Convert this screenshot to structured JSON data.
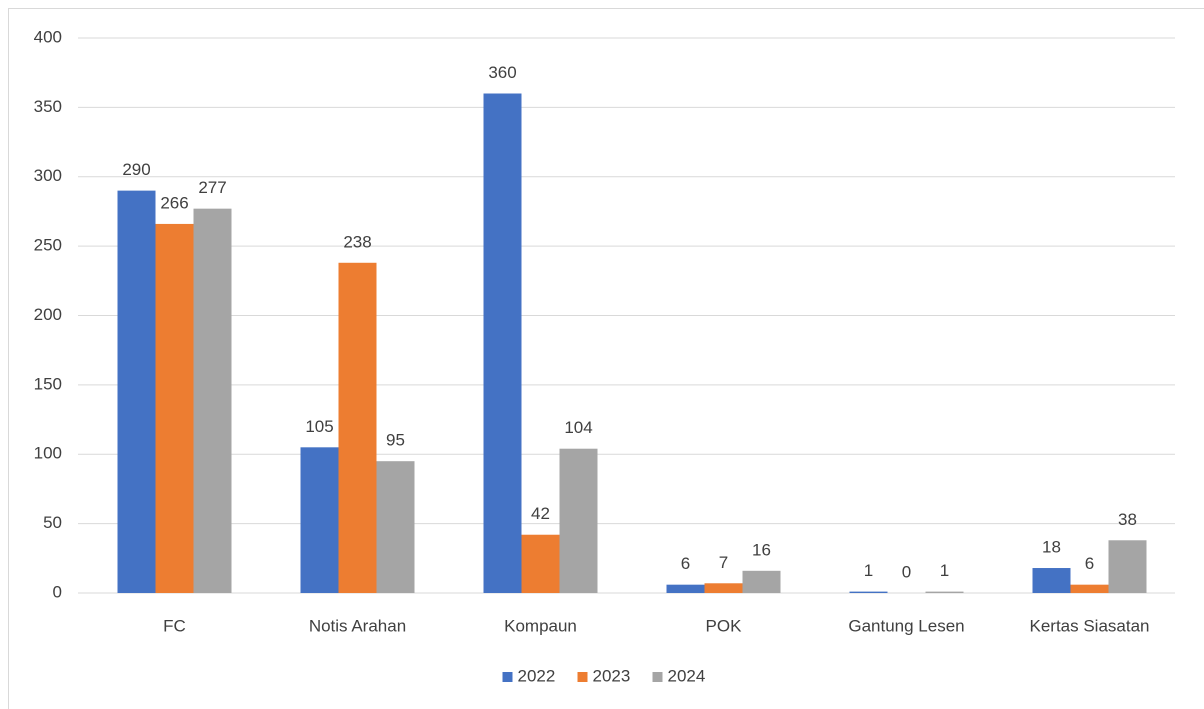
{
  "chart_data": {
    "type": "bar",
    "categories": [
      "FC",
      "Notis Arahan",
      "Kompaun",
      "POK",
      "Gantung Lesen",
      "Kertas Siasatan"
    ],
    "series": [
      {
        "name": "2022",
        "color": "#4472c4",
        "values": [
          290,
          105,
          360,
          6,
          1,
          18
        ]
      },
      {
        "name": "2023",
        "color": "#ed7d31",
        "values": [
          266,
          238,
          42,
          7,
          0,
          6
        ]
      },
      {
        "name": "2024",
        "color": "#a5a5a5",
        "values": [
          277,
          95,
          104,
          16,
          1,
          38
        ]
      }
    ],
    "ylim": [
      0,
      400
    ],
    "yticks": [
      0,
      50,
      100,
      150,
      200,
      250,
      300,
      350,
      400
    ],
    "grid": true,
    "legend": "bottom",
    "data_labels": true
  }
}
